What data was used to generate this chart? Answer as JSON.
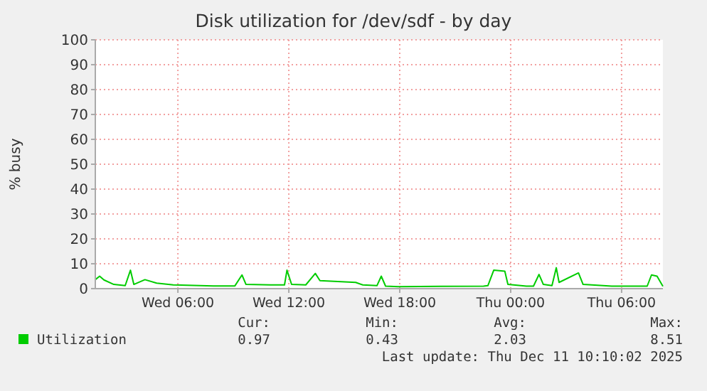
{
  "chart_data": {
    "type": "line",
    "title": "Disk utilization for /dev/sdf - by day",
    "ylabel": "% busy",
    "xlim": [
      "2025-12-10T01:32",
      "2025-12-11T08:14"
    ],
    "xticks": [
      {
        "value": "2025-12-10T06:00",
        "label": "Wed 06:00"
      },
      {
        "value": "2025-12-10T12:00",
        "label": "Wed 12:00"
      },
      {
        "value": "2025-12-10T18:00",
        "label": "Wed 18:00"
      },
      {
        "value": "2025-12-11T00:00",
        "label": "Thu 00:00"
      },
      {
        "value": "2025-12-11T06:00",
        "label": "Thu 06:00"
      }
    ],
    "ylim": [
      0,
      100
    ],
    "yticks": [
      0,
      10,
      20,
      30,
      40,
      50,
      60,
      70,
      80,
      90,
      100
    ],
    "grid": true,
    "legend": "bottom left",
    "marker": "none",
    "line_style": "solid",
    "series": [
      {
        "name": "Utilization",
        "color": "#00cc00",
        "x": [
          "2025-12-10T01:32",
          "2025-12-10T01:46",
          "2025-12-10T02:00",
          "2025-12-10T02:32",
          "2025-12-10T03:09",
          "2025-12-10T03:26",
          "2025-12-10T03:37",
          "2025-12-10T04:13",
          "2025-12-10T04:51",
          "2025-12-10T05:45",
          "2025-12-10T07:55",
          "2025-12-10T09:05",
          "2025-12-10T09:28",
          "2025-12-10T09:41",
          "2025-12-10T11:00",
          "2025-12-10T11:46",
          "2025-12-10T11:54",
          "2025-12-10T12:09",
          "2025-12-10T12:55",
          "2025-12-10T13:26",
          "2025-12-10T13:41",
          "2025-12-10T15:37",
          "2025-12-10T16:00",
          "2025-12-10T16:46",
          "2025-12-10T17:00",
          "2025-12-10T17:14",
          "2025-12-10T17:55",
          "2025-12-10T20:14",
          "2025-12-10T22:32",
          "2025-12-10T22:46",
          "2025-12-10T23:05",
          "2025-12-10T23:41",
          "2025-12-10T23:51",
          "2025-12-11T00:51",
          "2025-12-11T01:14",
          "2025-12-11T01:32",
          "2025-12-11T01:46",
          "2025-12-11T02:14",
          "2025-12-11T02:28",
          "2025-12-11T02:37",
          "2025-12-11T03:40",
          "2025-12-11T03:55",
          "2025-12-11T05:28",
          "2025-12-11T07:23",
          "2025-12-11T07:37",
          "2025-12-11T07:55",
          "2025-12-11T08:14"
        ],
        "values": [
          3.6,
          5,
          3.5,
          1.7,
          1.2,
          7.4,
          1.7,
          3.6,
          2.2,
          1.5,
          1.1,
          1.1,
          5.5,
          1.7,
          1.5,
          1.5,
          7.4,
          1.7,
          1.5,
          6.1,
          3.2,
          2.5,
          1.5,
          1.2,
          5,
          1,
          0.8,
          0.9,
          1,
          1.2,
          7.4,
          7,
          1.7,
          1,
          1,
          5.7,
          1.7,
          1.2,
          8.4,
          2.5,
          6.3,
          1.7,
          1,
          1,
          5.5,
          5,
          0.9
        ]
      }
    ],
    "annotations": [
      "Cur:",
      "Min:",
      "Avg:",
      "Max:",
      "0.97",
      "0.43",
      "2.03",
      "8.51",
      "Last update: Thu Dec 11 10:10:02 2025"
    ]
  }
}
